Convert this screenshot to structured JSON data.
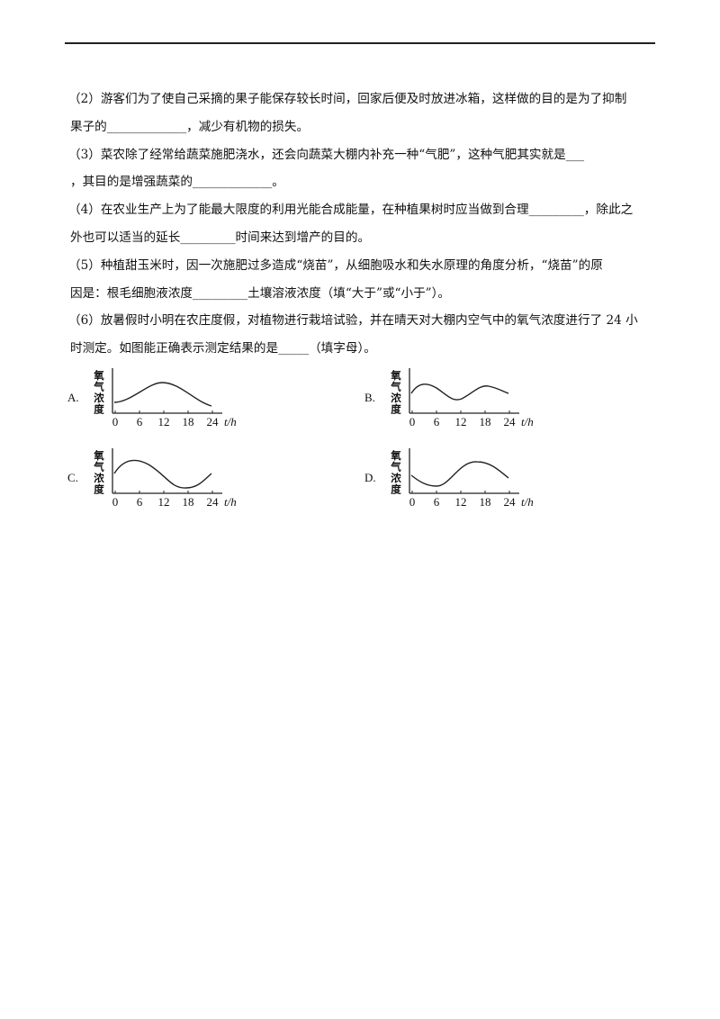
{
  "paragraphs": [
    [
      "（2）游客们为了使自己采摘的果子能保存较长时间，回家后便及时放进冰箱，这样做的目的是为了抑制",
      "果子的_____________，减少有机物的损失。"
    ],
    [
      "（3）菜农除了经常给蔬菜施肥浇水，还会向蔬菜大棚内补充一种“气肥”，这种气肥其实就是___",
      "，其目的是增强蔬菜的_____________。"
    ],
    [
      "（4）在农业生产上为了能最大限度的利用光能合成能量，在种植果树时应当做到合理_________，除此之",
      "外也可以适当的延长_________时间来达到增产的目的。"
    ],
    [
      "（5）种植甜玉米时，因一次施肥过多造成“烧苗”，从细胞吸水和失水原理的角度分析，“烧苗”的原",
      "因是：根毛细胞液浓度_________土壤溶液浓度（填“大于”或“小于”）。"
    ],
    [
      "（6）放暑假时小明在农庄度假，对植物进行栽培试验，并在晴天对大棚内空气中的氧气浓度进行了 24 小",
      "时测定。如图能正确表示测定结果的是_____（填字母）。"
    ]
  ],
  "options": [
    {
      "letter": "A.",
      "y_label": "氧气浓度",
      "x_ticks": [
        0,
        6,
        12,
        18,
        24
      ],
      "x_unit": "t/h"
    },
    {
      "letter": "B.",
      "y_label": "氧气浓度",
      "x_ticks": [
        0,
        6,
        12,
        18,
        24
      ],
      "x_unit": "t/h"
    },
    {
      "letter": "C.",
      "y_label": "氧气浓度",
      "x_ticks": [
        0,
        6,
        12,
        18,
        24
      ],
      "x_unit": "t/h"
    },
    {
      "letter": "D.",
      "y_label": "氧气浓度",
      "x_ticks": [
        0,
        6,
        12,
        18,
        24
      ],
      "x_unit": "t/h"
    }
  ]
}
